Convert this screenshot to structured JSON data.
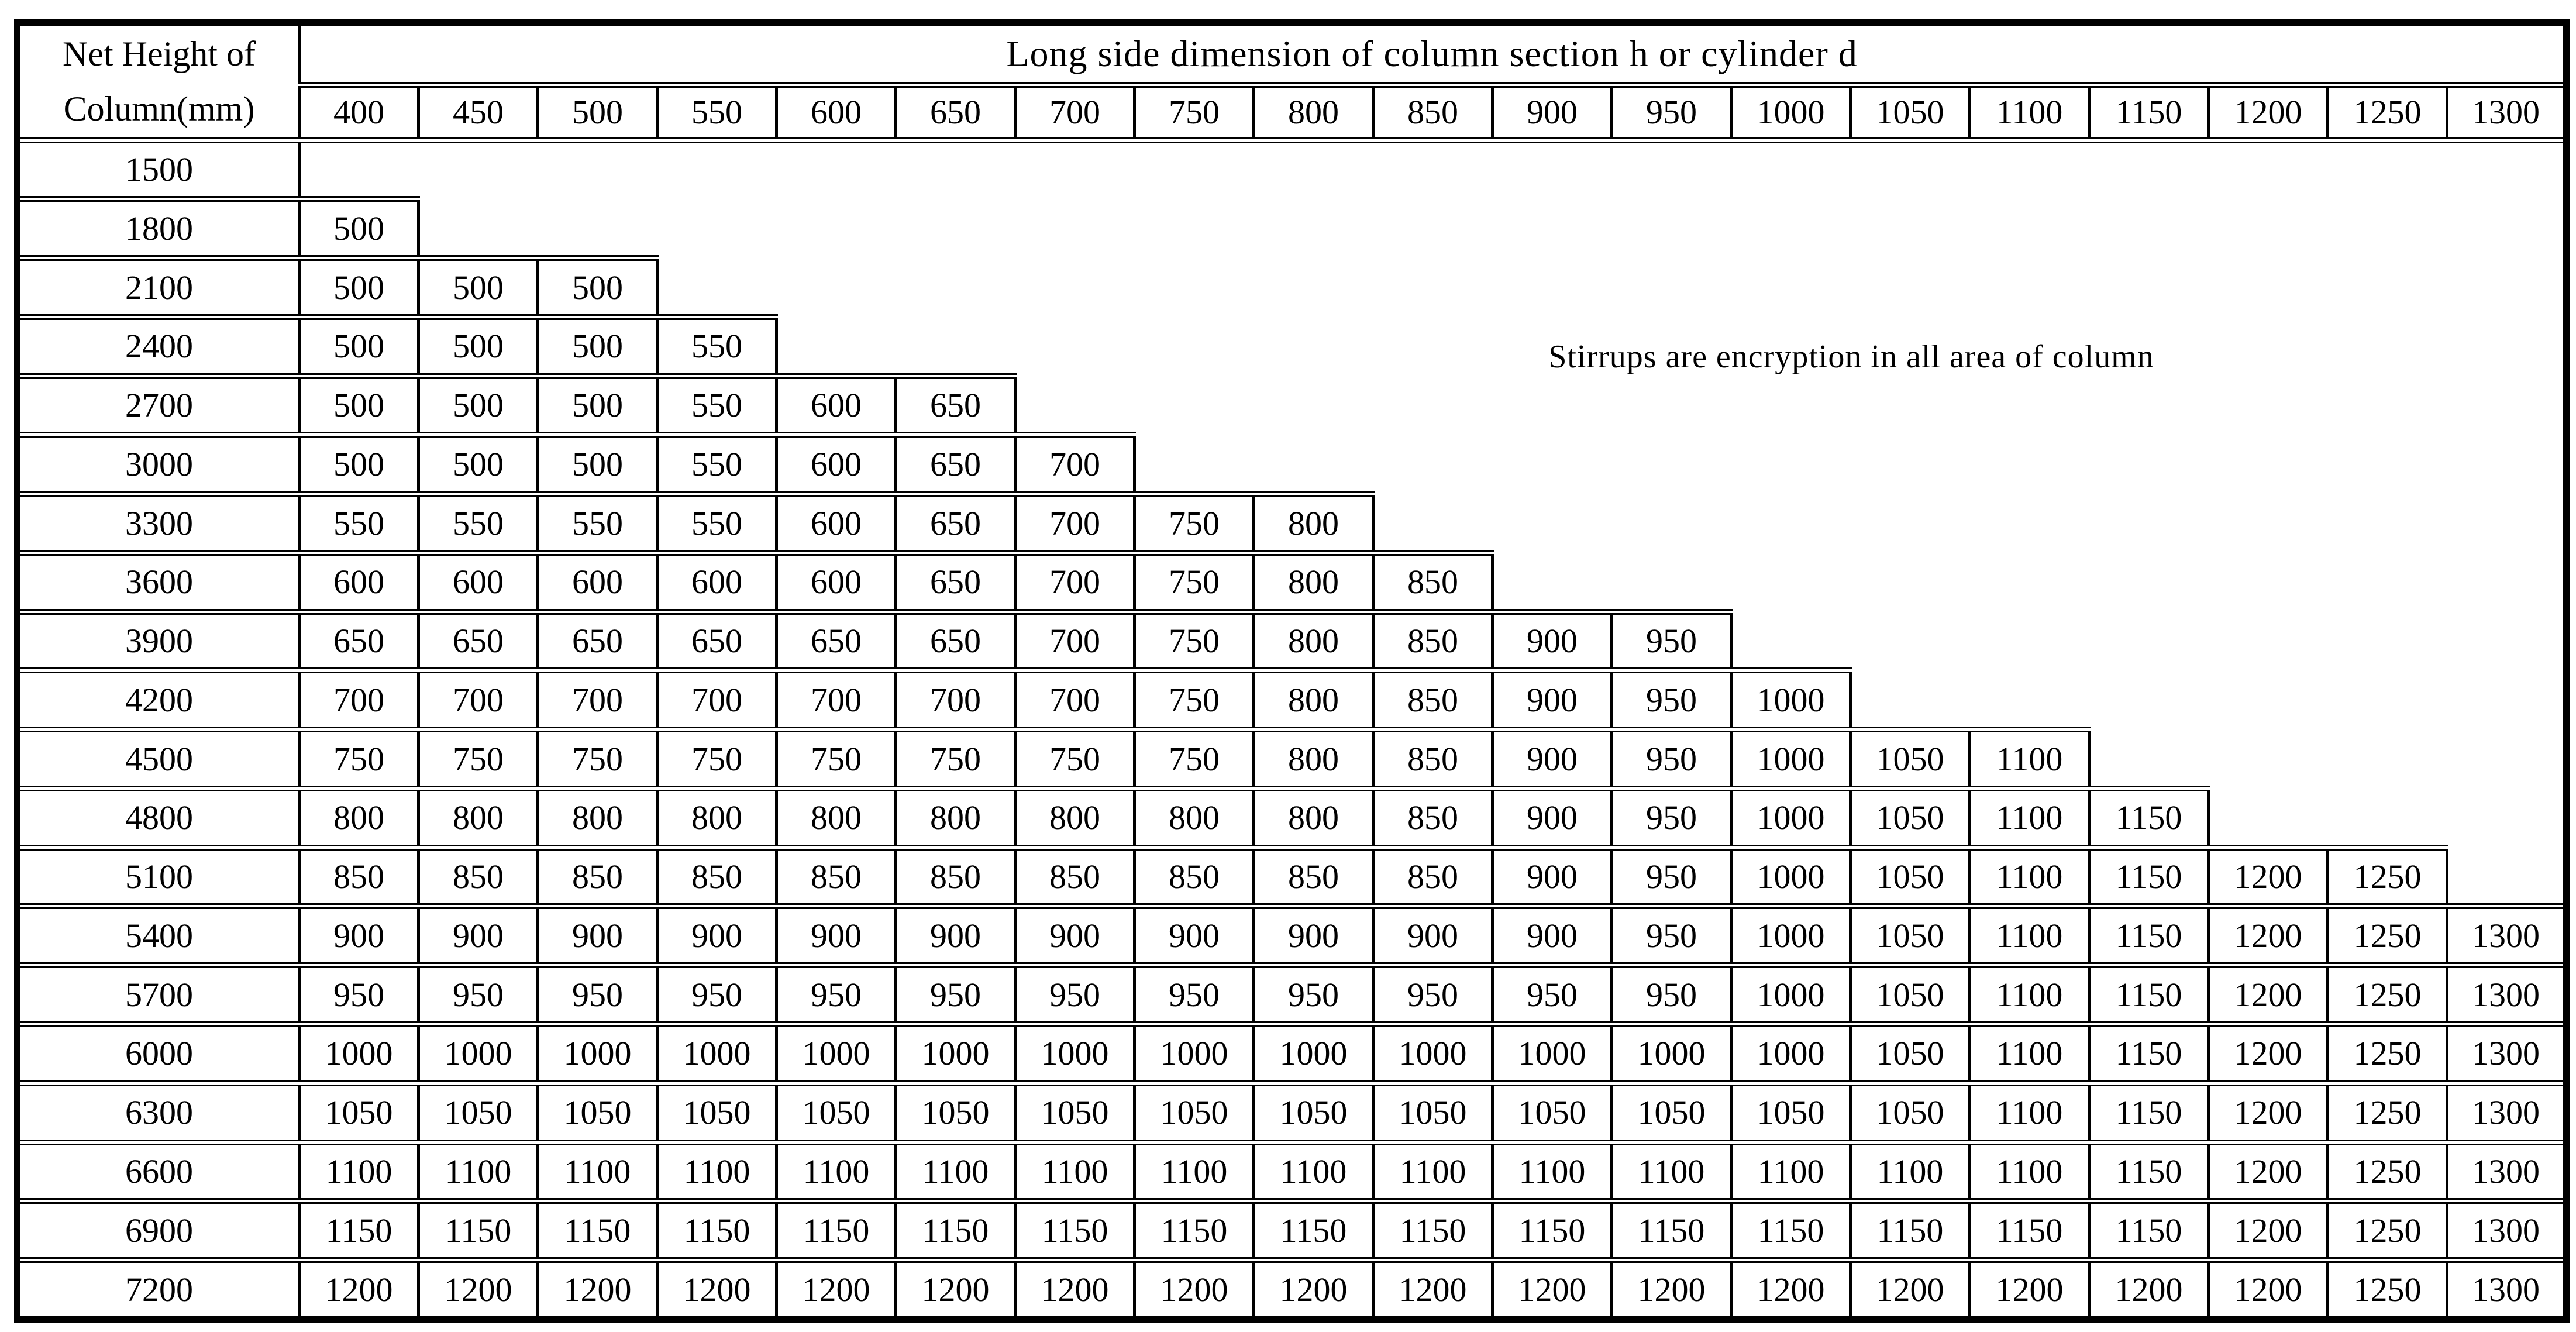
{
  "page": {
    "background": "#ffffff",
    "text_color": "#000000",
    "border_color": "#000000"
  },
  "table": {
    "corner": {
      "line1": "Net Height of",
      "line2": "Column(mm)"
    },
    "span_header": "Long side dimension of column section h or cylinder d",
    "columns": [
      "400",
      "450",
      "500",
      "550",
      "600",
      "650",
      "700",
      "750",
      "800",
      "850",
      "900",
      "950",
      "1000",
      "1050",
      "1100",
      "1150",
      "1200",
      "1250",
      "1300"
    ],
    "note": "Stirrups are encryption in all area of column",
    "rows": [
      {
        "label": "1500",
        "values": []
      },
      {
        "label": "1800",
        "values": [
          "500"
        ]
      },
      {
        "label": "2100",
        "values": [
          "500",
          "500",
          "500"
        ]
      },
      {
        "label": "2400",
        "values": [
          "500",
          "500",
          "500",
          "550"
        ]
      },
      {
        "label": "2700",
        "values": [
          "500",
          "500",
          "500",
          "550",
          "600",
          "650"
        ]
      },
      {
        "label": "3000",
        "values": [
          "500",
          "500",
          "500",
          "550",
          "600",
          "650",
          "700"
        ]
      },
      {
        "label": "3300",
        "values": [
          "550",
          "550",
          "550",
          "550",
          "600",
          "650",
          "700",
          "750",
          "800"
        ]
      },
      {
        "label": "3600",
        "values": [
          "600",
          "600",
          "600",
          "600",
          "600",
          "650",
          "700",
          "750",
          "800",
          "850"
        ]
      },
      {
        "label": "3900",
        "values": [
          "650",
          "650",
          "650",
          "650",
          "650",
          "650",
          "700",
          "750",
          "800",
          "850",
          "900",
          "950"
        ]
      },
      {
        "label": "4200",
        "values": [
          "700",
          "700",
          "700",
          "700",
          "700",
          "700",
          "700",
          "750",
          "800",
          "850",
          "900",
          "950",
          "1000"
        ]
      },
      {
        "label": "4500",
        "values": [
          "750",
          "750",
          "750",
          "750",
          "750",
          "750",
          "750",
          "750",
          "800",
          "850",
          "900",
          "950",
          "1000",
          "1050",
          "1100"
        ]
      },
      {
        "label": "4800",
        "values": [
          "800",
          "800",
          "800",
          "800",
          "800",
          "800",
          "800",
          "800",
          "800",
          "850",
          "900",
          "950",
          "1000",
          "1050",
          "1100",
          "1150"
        ]
      },
      {
        "label": "5100",
        "values": [
          "850",
          "850",
          "850",
          "850",
          "850",
          "850",
          "850",
          "850",
          "850",
          "850",
          "900",
          "950",
          "1000",
          "1050",
          "1100",
          "1150",
          "1200",
          "1250"
        ]
      },
      {
        "label": "5400",
        "values": [
          "900",
          "900",
          "900",
          "900",
          "900",
          "900",
          "900",
          "900",
          "900",
          "900",
          "900",
          "950",
          "1000",
          "1050",
          "1100",
          "1150",
          "1200",
          "1250",
          "1300"
        ]
      },
      {
        "label": "5700",
        "values": [
          "950",
          "950",
          "950",
          "950",
          "950",
          "950",
          "950",
          "950",
          "950",
          "950",
          "950",
          "950",
          "1000",
          "1050",
          "1100",
          "1150",
          "1200",
          "1250",
          "1300"
        ]
      },
      {
        "label": "6000",
        "values": [
          "1000",
          "1000",
          "1000",
          "1000",
          "1000",
          "1000",
          "1000",
          "1000",
          "1000",
          "1000",
          "1000",
          "1000",
          "1000",
          "1050",
          "1100",
          "1150",
          "1200",
          "1250",
          "1300"
        ]
      },
      {
        "label": "6300",
        "values": [
          "1050",
          "1050",
          "1050",
          "1050",
          "1050",
          "1050",
          "1050",
          "1050",
          "1050",
          "1050",
          "1050",
          "1050",
          "1050",
          "1050",
          "1100",
          "1150",
          "1200",
          "1250",
          "1300"
        ]
      },
      {
        "label": "6600",
        "values": [
          "1100",
          "1100",
          "1100",
          "1100",
          "1100",
          "1100",
          "1100",
          "1100",
          "1100",
          "1100",
          "1100",
          "1100",
          "1100",
          "1100",
          "1100",
          "1150",
          "1200",
          "1250",
          "1300"
        ]
      },
      {
        "label": "6900",
        "values": [
          "1150",
          "1150",
          "1150",
          "1150",
          "1150",
          "1150",
          "1150",
          "1150",
          "1150",
          "1150",
          "1150",
          "1150",
          "1150",
          "1150",
          "1150",
          "1150",
          "1200",
          "1250",
          "1300"
        ]
      },
      {
        "label": "7200",
        "values": [
          "1200",
          "1200",
          "1200",
          "1200",
          "1200",
          "1200",
          "1200",
          "1200",
          "1200",
          "1200",
          "1200",
          "1200",
          "1200",
          "1200",
          "1200",
          "1200",
          "1200",
          "1250",
          "1300"
        ]
      }
    ]
  }
}
